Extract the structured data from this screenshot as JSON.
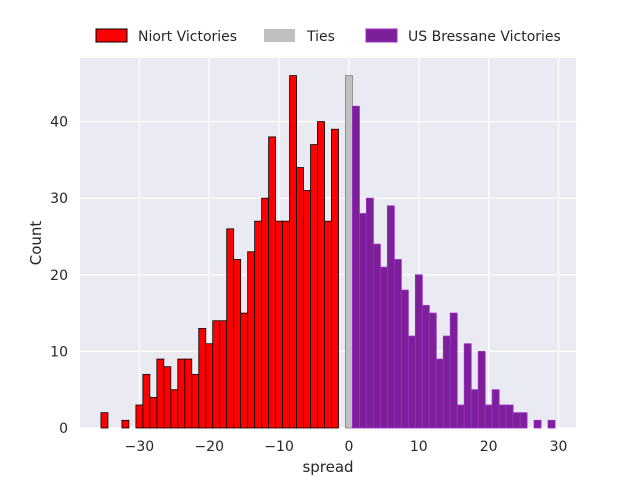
{
  "chart_data": {
    "type": "bar",
    "xlabel": "spread",
    "ylabel": "Count",
    "xlim": [
      -38.5,
      32.5
    ],
    "ylim": [
      0,
      48.3
    ],
    "x_ticks": [
      -30,
      -20,
      -10,
      0,
      10,
      20,
      30
    ],
    "x_tick_labels": [
      "−30",
      "−20",
      "−10",
      "0",
      "10",
      "20",
      "30"
    ],
    "y_ticks": [
      0,
      10,
      20,
      30,
      40
    ],
    "y_tick_labels": [
      "0",
      "10",
      "20",
      "30",
      "40"
    ],
    "grid": true,
    "legend_position": "top-center-outside",
    "series": [
      {
        "name": "Niort Victories",
        "color": "#ff0000",
        "edge_color": "#000000",
        "x": [
          -35,
          -34,
          -33,
          -32,
          -31,
          -30,
          -29,
          -28,
          -27,
          -26,
          -25,
          -24,
          -23,
          -22,
          -21,
          -20,
          -19,
          -18,
          -17,
          -16,
          -15,
          -14,
          -13,
          -12,
          -11,
          -10,
          -9,
          -8,
          -7,
          -6,
          -5,
          -4,
          -3,
          -2,
          -1
        ],
        "values": [
          2,
          0,
          0,
          1,
          0,
          3,
          7,
          4,
          9,
          8,
          5,
          9,
          9,
          7,
          13,
          11,
          14,
          14,
          26,
          22,
          15,
          23,
          27,
          30,
          38,
          27,
          27,
          46,
          34,
          31,
          37,
          40,
          27,
          39,
          0
        ]
      },
      {
        "name": "Ties",
        "color": "#c0c0c0",
        "edge_color": "#808080",
        "x": [
          0
        ],
        "values": [
          46
        ]
      },
      {
        "name": "US Bressane Victories",
        "color": "#7e1f9a",
        "edge_color": "#9b30c8",
        "x": [
          1,
          2,
          3,
          4,
          5,
          6,
          7,
          8,
          9,
          10,
          11,
          12,
          13,
          14,
          15,
          16,
          17,
          18,
          19,
          20,
          21,
          22,
          23,
          24,
          25,
          26,
          27,
          28,
          29
        ],
        "values": [
          42,
          28,
          30,
          24,
          21,
          29,
          22,
          18,
          12,
          20,
          16,
          15,
          9,
          12,
          15,
          3,
          11,
          5,
          10,
          3,
          5,
          3,
          3,
          2,
          2,
          0,
          1,
          0,
          1
        ]
      }
    ]
  },
  "colors": {
    "plot_background": "#eaeaf2",
    "grid": "#ffffff",
    "text": "#262626"
  }
}
